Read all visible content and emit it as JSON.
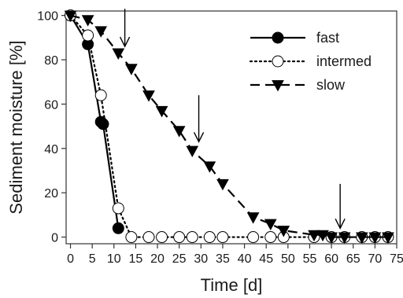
{
  "chart_data": {
    "type": "line",
    "title": "",
    "xlabel": "Time [d]",
    "ylabel": "Sediment moisture [%]",
    "xlim": [
      -1,
      75
    ],
    "ylim": [
      -3,
      102
    ],
    "xticks": [
      0,
      5,
      10,
      15,
      20,
      25,
      30,
      35,
      40,
      45,
      50,
      55,
      60,
      65,
      70,
      75
    ],
    "yticks": [
      0,
      20,
      40,
      60,
      80,
      100
    ],
    "grid": false,
    "legend_position": "top-right",
    "series": [
      {
        "name": "fast",
        "line_style": "solid",
        "marker": "filled-circle",
        "x": [
          0,
          4,
          7,
          7.5,
          11
        ],
        "y": [
          100,
          87,
          52,
          51,
          4
        ]
      },
      {
        "name": "intermed",
        "line_style": "dotted",
        "marker": "open-circle",
        "x": [
          0,
          4,
          7,
          11,
          14,
          18,
          21,
          25,
          28,
          32,
          35,
          42,
          46,
          49,
          56,
          60,
          63,
          67,
          70,
          73
        ],
        "y": [
          100,
          91,
          64,
          13,
          0,
          0,
          0,
          0,
          0,
          0,
          0,
          0,
          0,
          0,
          0,
          0,
          0,
          0,
          0,
          0
        ]
      },
      {
        "name": "slow",
        "line_style": "dashed",
        "marker": "filled-triangle-down",
        "x": [
          0,
          4,
          7,
          11,
          14,
          18,
          21,
          25,
          28,
          32,
          35,
          42,
          46,
          49,
          56,
          58,
          60,
          63,
          67,
          70,
          73
        ],
        "y": [
          100,
          98,
          93,
          83,
          76,
          64,
          57,
          48,
          39,
          32,
          24,
          9,
          6,
          3,
          1,
          1,
          0,
          0,
          0,
          0,
          0
        ]
      }
    ],
    "annotations": [
      {
        "type": "arrow-down",
        "x": 12.5,
        "y_from": 103,
        "y_to": 86
      },
      {
        "type": "arrow-down",
        "x": 29.5,
        "y_from": 64,
        "y_to": 43
      },
      {
        "type": "arrow-down",
        "x": 62,
        "y_from": 24,
        "y_to": 4
      }
    ]
  }
}
